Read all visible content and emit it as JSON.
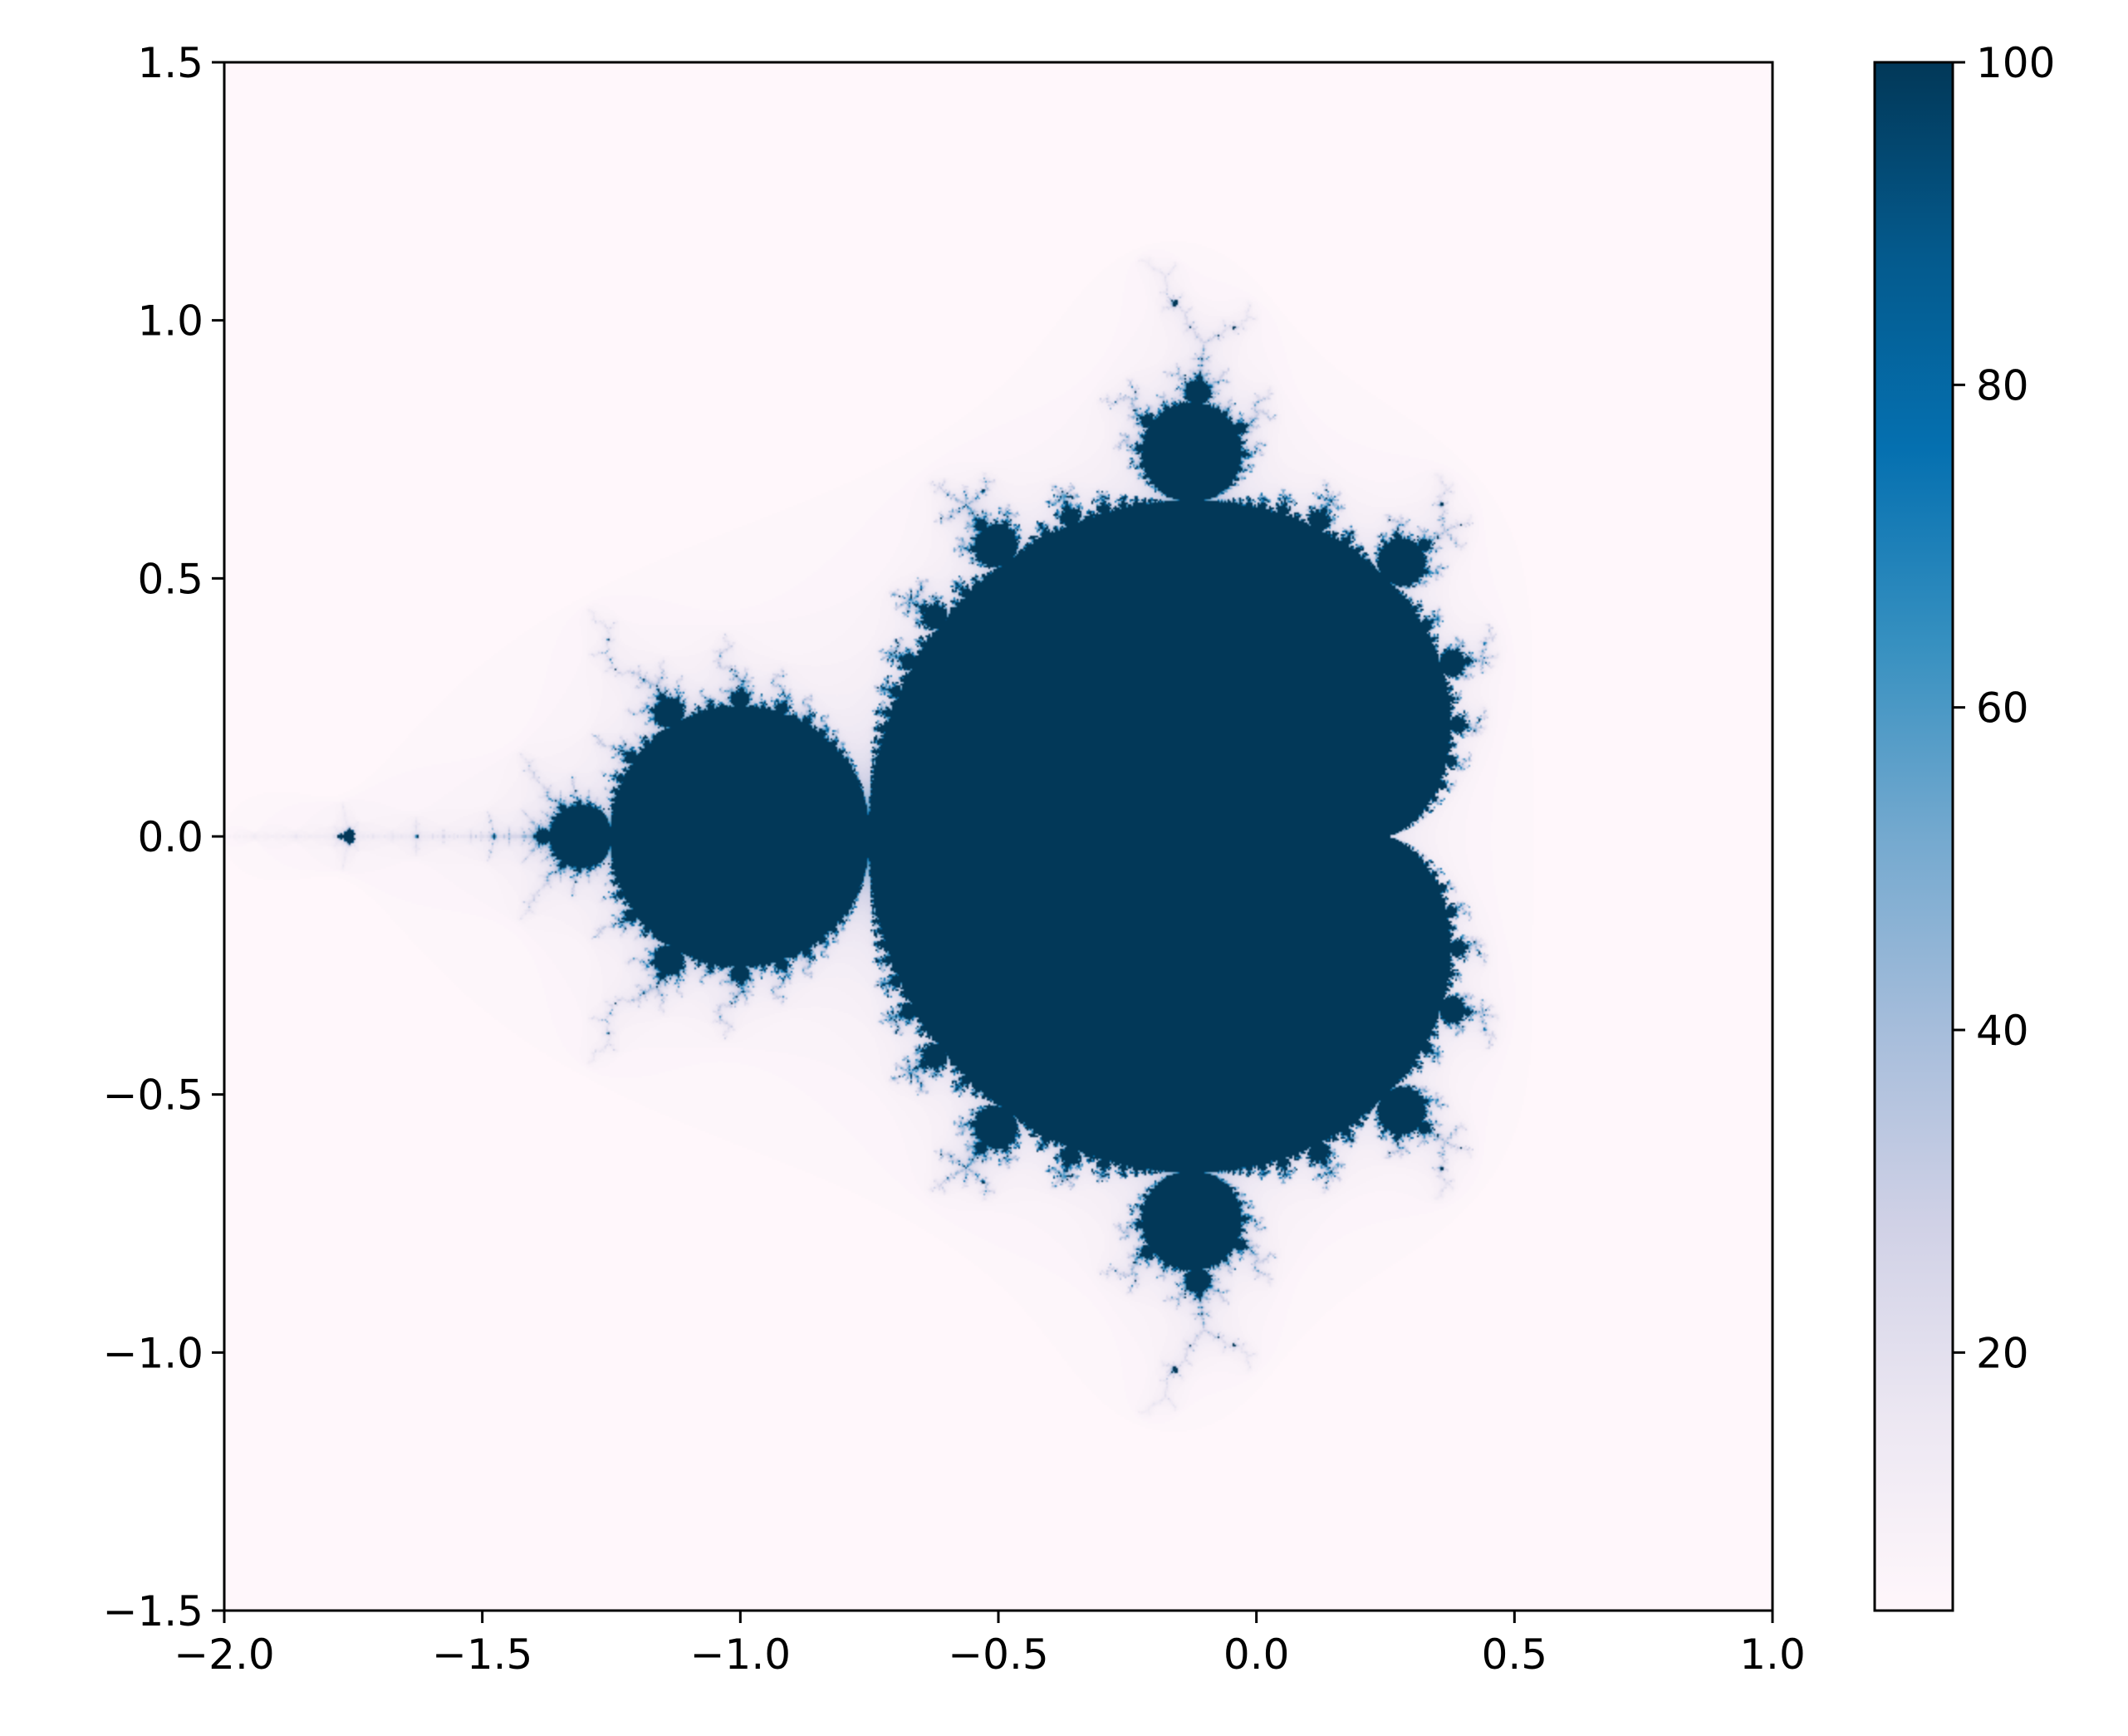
{
  "chart_data": {
    "type": "heatmap",
    "title": "",
    "xlabel": "",
    "ylabel": "",
    "description_of_data": "escape-iteration counts",
    "xlim": [
      -2.0,
      1.0
    ],
    "ylim": [
      -1.5,
      1.5
    ],
    "x_ticks": [
      -2.0,
      -1.5,
      -1.0,
      -0.5,
      0.0,
      0.5,
      1.0
    ],
    "x_tick_labels": [
      "−2.0",
      "−1.5",
      "−1.0",
      "−0.5",
      "0.0",
      "0.5",
      "1.0"
    ],
    "y_ticks": [
      1.5,
      1.0,
      0.5,
      0.0,
      -0.5,
      -1.0,
      -1.5
    ],
    "y_tick_labels": [
      "1.5",
      "1.0",
      "0.5",
      "0.0",
      "−0.5",
      "−1.0",
      "−1.5"
    ],
    "max_iterations": 100,
    "colorbar": {
      "colormap": "PuBu",
      "range": [
        4,
        100
      ],
      "ticks": [
        20,
        40,
        60,
        80,
        100
      ],
      "tick_labels": [
        "20",
        "40",
        "60",
        "80",
        "100"
      ],
      "placement": "right"
    },
    "colormap_stops": [
      "#fff7fb",
      "#ece7f2",
      "#d0d1e6",
      "#a6bddb",
      "#74a9cf",
      "#3690c0",
      "#0570b0",
      "#045a8d",
      "#023858"
    ],
    "grid": false
  }
}
